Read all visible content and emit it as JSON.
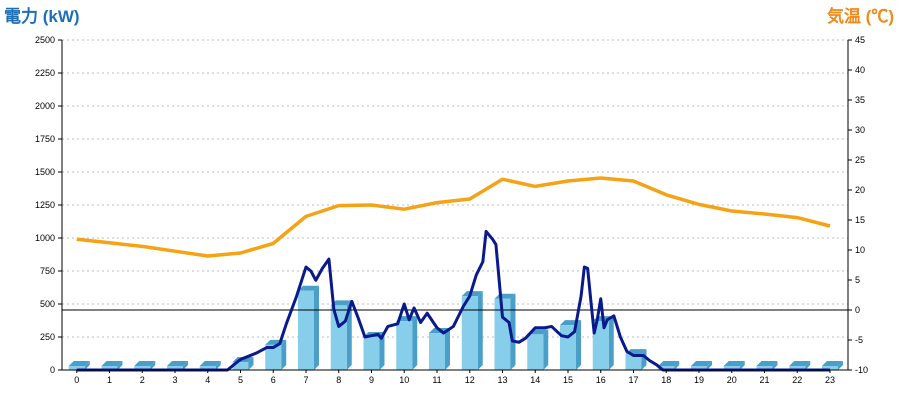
{
  "left_axis_title": "電力 (kW)",
  "right_axis_title": "気温 (℃)",
  "colors": {
    "bar": "#87ceeb",
    "bar_side": "#4a9fc8",
    "power_line": "#0a1a8c",
    "temp_line": "#f5a315",
    "left_title": "#1e6fb8",
    "right_title": "#f08a1c"
  },
  "chart_data": {
    "type": "bar+line",
    "x_ticks": [
      "0",
      "1",
      "2",
      "3",
      "4",
      "5",
      "6",
      "7",
      "8",
      "9",
      "10",
      "11",
      "12",
      "13",
      "14",
      "15",
      "16",
      "17",
      "18",
      "19",
      "20",
      "21",
      "22",
      "23"
    ],
    "y_left": {
      "ylim": [
        0,
        2500
      ],
      "ticks": [
        "0",
        "250",
        "500",
        "750",
        "1000",
        "1250",
        "1500",
        "1750",
        "2000",
        "2250",
        "2500"
      ]
    },
    "y_right": {
      "ylim": [
        -10,
        45
      ],
      "ticks": [
        "-10",
        "-5",
        "0",
        "5",
        "10",
        "15",
        "20",
        "25",
        "30",
        "35",
        "40",
        "45"
      ]
    },
    "grid": true,
    "bars_kw": [
      0,
      0,
      0,
      0,
      0,
      60,
      190,
      600,
      490,
      250,
      370,
      280,
      560,
      540,
      270,
      340,
      370,
      120,
      0,
      0,
      0,
      0,
      0,
      0
    ],
    "power_line_kw": [
      [
        0,
        0
      ],
      [
        1,
        0
      ],
      [
        2,
        0
      ],
      [
        3,
        0
      ],
      [
        4,
        0
      ],
      [
        4.6,
        0
      ],
      [
        5,
        80
      ],
      [
        5.5,
        130
      ],
      [
        5.8,
        170
      ],
      [
        6,
        170
      ],
      [
        6.2,
        200
      ],
      [
        6.4,
        350
      ],
      [
        6.7,
        550
      ],
      [
        7,
        780
      ],
      [
        7.15,
        750
      ],
      [
        7.3,
        680
      ],
      [
        7.5,
        770
      ],
      [
        7.7,
        840
      ],
      [
        7.85,
        460
      ],
      [
        8,
        330
      ],
      [
        8.2,
        370
      ],
      [
        8.4,
        520
      ],
      [
        8.6,
        390
      ],
      [
        8.8,
        250
      ],
      [
        9,
        260
      ],
      [
        9.2,
        270
      ],
      [
        9.3,
        240
      ],
      [
        9.5,
        330
      ],
      [
        9.8,
        350
      ],
      [
        10,
        500
      ],
      [
        10.15,
        380
      ],
      [
        10.3,
        470
      ],
      [
        10.5,
        360
      ],
      [
        10.7,
        430
      ],
      [
        11,
        320
      ],
      [
        11.2,
        280
      ],
      [
        11.5,
        330
      ],
      [
        11.8,
        480
      ],
      [
        12,
        560
      ],
      [
        12.2,
        720
      ],
      [
        12.4,
        820
      ],
      [
        12.5,
        1050
      ],
      [
        12.7,
        990
      ],
      [
        12.8,
        950
      ],
      [
        13,
        400
      ],
      [
        13.2,
        360
      ],
      [
        13.3,
        220
      ],
      [
        13.5,
        210
      ],
      [
        13.7,
        240
      ],
      [
        14,
        320
      ],
      [
        14.3,
        320
      ],
      [
        14.5,
        330
      ],
      [
        14.8,
        260
      ],
      [
        15,
        250
      ],
      [
        15.2,
        290
      ],
      [
        15.4,
        560
      ],
      [
        15.5,
        780
      ],
      [
        15.6,
        770
      ],
      [
        15.7,
        520
      ],
      [
        15.8,
        280
      ],
      [
        15.9,
        390
      ],
      [
        16,
        540
      ],
      [
        16.1,
        320
      ],
      [
        16.2,
        380
      ],
      [
        16.4,
        410
      ],
      [
        16.6,
        250
      ],
      [
        16.8,
        140
      ],
      [
        17,
        110
      ],
      [
        17.3,
        110
      ],
      [
        17.5,
        70
      ],
      [
        17.7,
        40
      ],
      [
        17.9,
        0
      ],
      [
        18,
        0
      ],
      [
        19,
        0
      ],
      [
        20,
        0
      ],
      [
        21,
        0
      ],
      [
        22,
        0
      ],
      [
        23,
        0
      ]
    ],
    "temperature_c": [
      11.8,
      11.2,
      10.6,
      9.8,
      9.0,
      9.5,
      11.1,
      15.6,
      17.4,
      17.5,
      16.8,
      17.9,
      18.5,
      21.8,
      20.6,
      21.5,
      22.0,
      21.5,
      19.2,
      17.6,
      16.5,
      16.0,
      15.4,
      14.0
    ]
  }
}
